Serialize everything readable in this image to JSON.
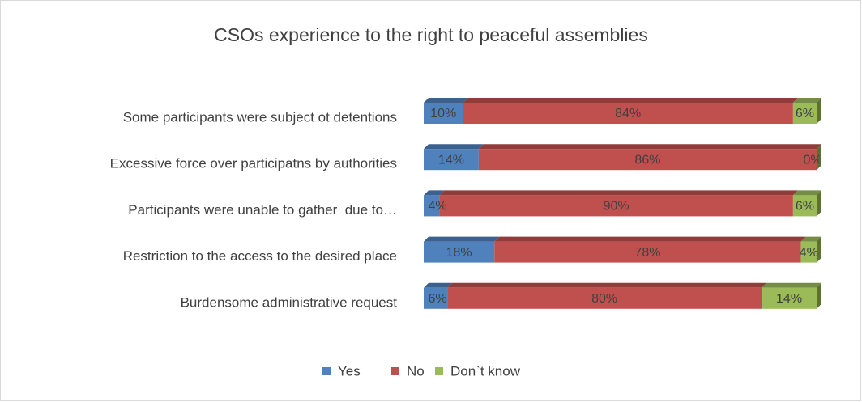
{
  "chart_data": {
    "type": "bar3d_stacked_horizontal",
    "title": "CSOs experience to the right to peaceful assemblies",
    "categories": [
      "Some participants were subject ot detentions",
      "Excessive force over participatns by authorities",
      "Participants were unable to gather  due to…",
      "Restriction to the access to the desired place",
      "Burdensome administrative request"
    ],
    "series": [
      {
        "name": "Yes",
        "color": "#4f81bd",
        "values": [
          10,
          14,
          4,
          18,
          6
        ],
        "value_labels": [
          "10%",
          "14%",
          "4%",
          "18%",
          "6%"
        ]
      },
      {
        "name": "No",
        "color": "#c0504d",
        "values": [
          84,
          86,
          90,
          78,
          80
        ],
        "value_labels": [
          "84%",
          "86%",
          "90%",
          "78%",
          "80%"
        ]
      },
      {
        "name": "Don`t know",
        "color": "#9bbb59",
        "values": [
          6,
          0,
          6,
          4,
          14
        ],
        "value_labels": [
          "6%",
          "0%",
          "6%",
          "4%",
          "14%"
        ]
      }
    ],
    "legend": "bottom"
  }
}
